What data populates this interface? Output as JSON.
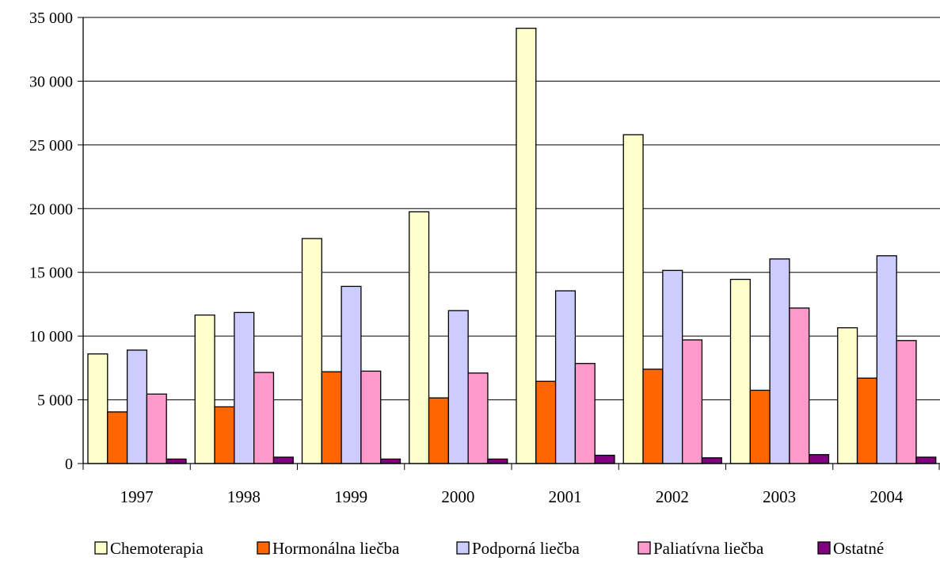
{
  "chart_data": {
    "type": "bar",
    "categories": [
      "1997",
      "1998",
      "1999",
      "2000",
      "2001",
      "2002",
      "2003",
      "2004"
    ],
    "series": [
      {
        "name": "Chemoterapia",
        "color": "#FFFFCC",
        "values": [
          8600,
          11650,
          17650,
          19750,
          34150,
          25800,
          14450,
          10650
        ]
      },
      {
        "name": "Hormonálna liečba",
        "color": "#FF6600",
        "values": [
          4050,
          4450,
          7200,
          5150,
          6450,
          7400,
          5750,
          6700
        ]
      },
      {
        "name": "Podporná liečba",
        "color": "#CCCCFF",
        "values": [
          8900,
          11850,
          13900,
          12000,
          13550,
          15150,
          16050,
          16300
        ]
      },
      {
        "name": "Paliatívna liečba",
        "color": "#FF99CC",
        "values": [
          5450,
          7150,
          7250,
          7100,
          7850,
          9700,
          12200,
          9650
        ]
      },
      {
        "name": "Ostatné",
        "color": "#800080",
        "values": [
          350,
          500,
          350,
          350,
          650,
          450,
          700,
          500
        ]
      }
    ],
    "yticks": [
      "0",
      "5 000",
      "10 000",
      "15 000",
      "20 000",
      "25 000",
      "30 000",
      "35 000"
    ],
    "ylim": [
      0,
      35000
    ],
    "grid": true,
    "legend_position": "bottom"
  }
}
